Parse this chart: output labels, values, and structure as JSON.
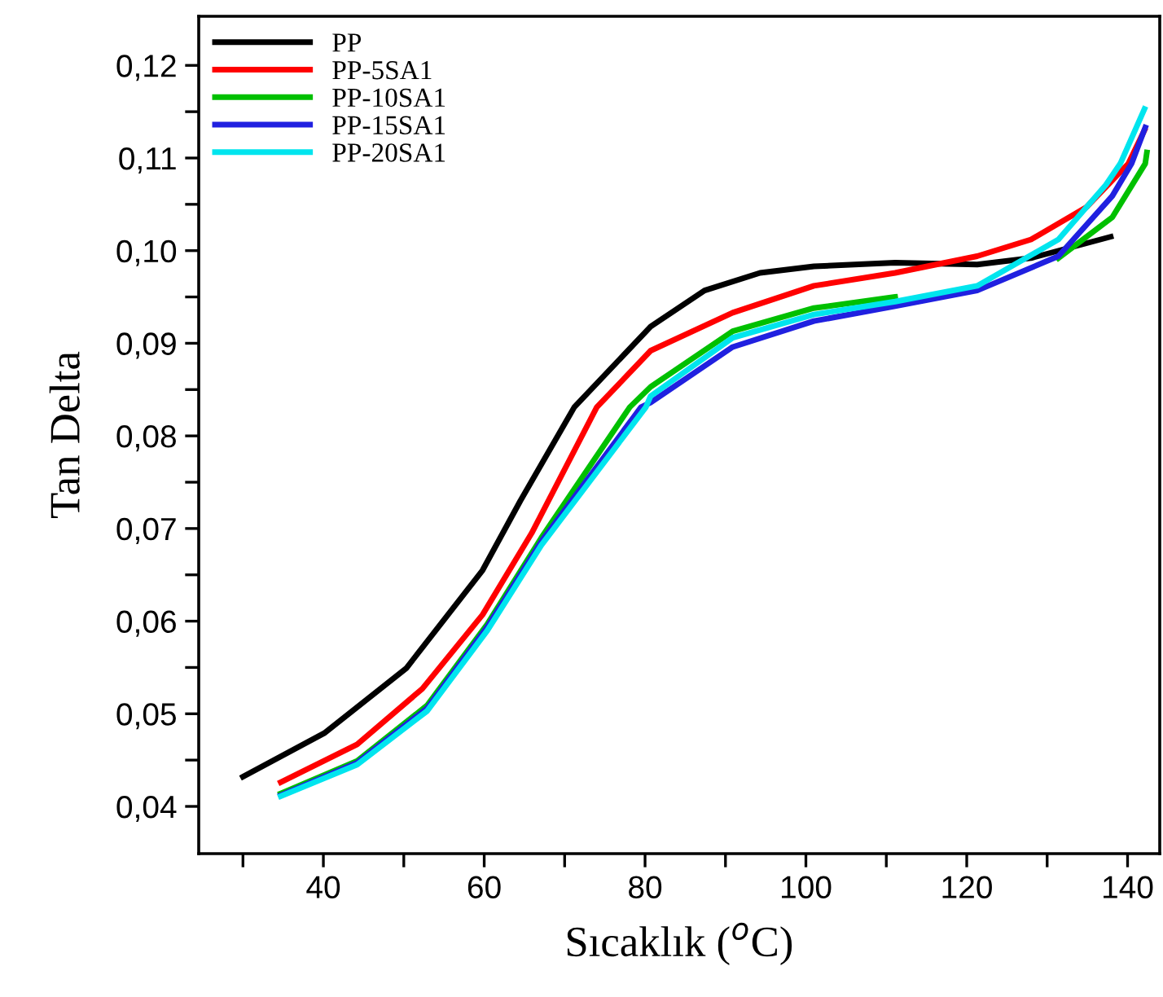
{
  "chart_data": {
    "type": "line",
    "xlabel": "Sıcaklık ($^{o}$C)",
    "ylabel": "Tan Delta",
    "xlim": [
      24.5,
      144
    ],
    "ylim": [
      0.0349,
      0.1253
    ],
    "xticks": [
      {
        "value": 30,
        "label": null
      },
      40,
      {
        "value": 50,
        "label": null
      },
      60,
      {
        "value": 70,
        "label": null
      },
      80,
      {
        "value": 90,
        "label": null
      },
      100,
      {
        "value": 110,
        "label": null
      },
      120,
      {
        "value": 130,
        "label": null
      },
      140
    ],
    "yticks": [
      {
        "value": 0.04,
        "label": "0,04"
      },
      {
        "value": 0.045,
        "label": null
      },
      {
        "value": 0.05,
        "label": "0,05"
      },
      {
        "value": 0.055,
        "label": null
      },
      {
        "value": 0.06,
        "label": "0,06"
      },
      {
        "value": 0.065,
        "label": null
      },
      {
        "value": 0.07,
        "label": "0,07"
      },
      {
        "value": 0.075,
        "label": null
      },
      {
        "value": 0.08,
        "label": "0,08"
      },
      {
        "value": 0.085,
        "label": null
      },
      {
        "value": 0.09,
        "label": "0,09"
      },
      {
        "value": 0.095,
        "label": null
      },
      {
        "value": 0.1,
        "label": "0,10"
      },
      {
        "value": 0.105,
        "label": null
      },
      {
        "value": 0.11,
        "label": "0,11"
      },
      {
        "value": 0.115,
        "label": null
      },
      {
        "value": 0.12,
        "label": "0,12"
      }
    ],
    "grid": false,
    "legend": "top left",
    "marker": "none",
    "line_style": "solid",
    "series": [
      {
        "name": "PP",
        "color": "#000000",
        "x": [
          30,
          40.1,
          50.3,
          59.8,
          64.5,
          71.2,
          80.7,
          87.4,
          94.3,
          101,
          111.1,
          121.3,
          128,
          137.9
        ],
        "values": [
          0.0432,
          0.0479,
          0.0549,
          0.0655,
          0.073,
          0.0831,
          0.0918,
          0.0957,
          0.0976,
          0.0983,
          0.0987,
          0.0985,
          0.0992,
          0.1015
        ]
      },
      {
        "name": "PP-5SA1",
        "color": "#ff0000",
        "x": [
          34.7,
          44.2,
          52.3,
          59.8,
          65.9,
          74,
          80.7,
          90.9,
          101,
          111.1,
          121.3,
          128,
          134.9,
          140.1,
          142.1
        ],
        "values": [
          0.0426,
          0.0467,
          0.0527,
          0.0607,
          0.0695,
          0.0831,
          0.0892,
          0.0933,
          0.0962,
          0.0976,
          0.0994,
          0.1012,
          0.1047,
          0.1094,
          0.113
        ]
      },
      {
        "name": "PP-10SA1",
        "color": "#00c000",
        "x": [
          34.7,
          44.2,
          52.9,
          60.4,
          67.1,
          78.1,
          80.7,
          90.9,
          101,
          111.1,
          121.3,
          131.4,
          138.1,
          142.2,
          142.4
        ],
        "values": [
          0.0414,
          0.0449,
          0.0509,
          0.0597,
          0.069,
          0.0831,
          0.0853,
          0.0913,
          0.0938,
          0.095,
          null,
          0.0992,
          0.1036,
          0.1094,
          0.1106
        ]
      },
      {
        "name": "PP-15SA1",
        "color": "#2020e0",
        "x": [
          34.7,
          44.2,
          52.9,
          60.4,
          67.1,
          79.5,
          80.7,
          90.9,
          101,
          111.1,
          121.3,
          131.4,
          138.1,
          140.5,
          142.2
        ],
        "values": [
          0.0412,
          0.0447,
          0.0506,
          0.0594,
          0.0686,
          0.0831,
          0.0836,
          0.0896,
          0.0924,
          0.094,
          0.0957,
          0.0994,
          0.1059,
          0.1094,
          0.1133
        ]
      },
      {
        "name": "PP-20SA1",
        "color": "#00e5ee",
        "x": [
          34.7,
          44.2,
          52.9,
          60.4,
          67.1,
          80.1,
          80.7,
          90.9,
          101,
          111.1,
          121.3,
          131.4,
          137.3,
          139.1,
          142.1
        ],
        "values": [
          0.0411,
          0.0445,
          0.0503,
          0.059,
          0.0682,
          0.0831,
          0.0843,
          0.0906,
          0.0931,
          0.0945,
          0.0962,
          0.1012,
          0.1071,
          0.1094,
          0.1153
        ]
      }
    ]
  }
}
